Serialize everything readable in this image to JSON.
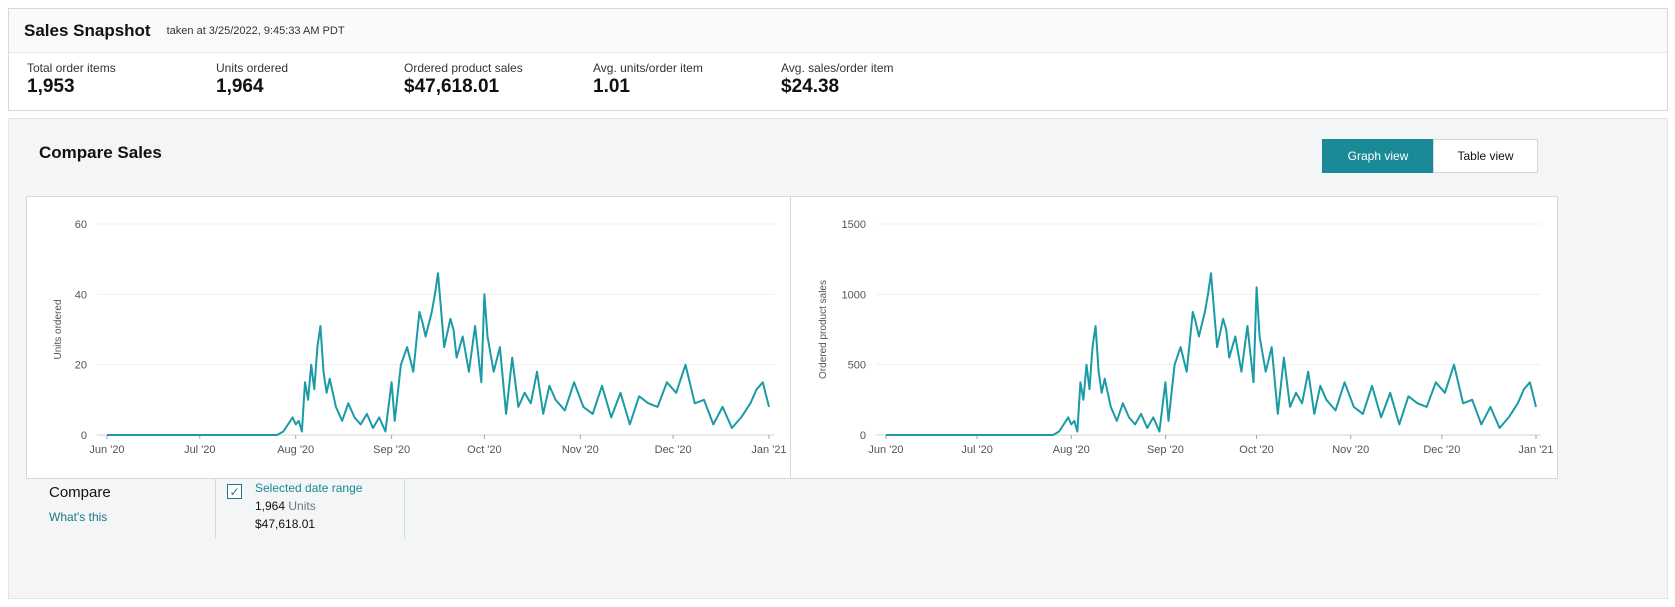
{
  "snapshot": {
    "title": "Sales Snapshot",
    "taken_at": "taken at 3/25/2022, 9:45:33 AM PDT",
    "metrics": [
      {
        "label": "Total order items",
        "value": "1,953"
      },
      {
        "label": "Units ordered",
        "value": "1,964"
      },
      {
        "label": "Ordered product sales",
        "value": "$47,618.01"
      },
      {
        "label": "Avg. units/order item",
        "value": "1.01"
      },
      {
        "label": "Avg. sales/order item",
        "value": "$24.38"
      }
    ]
  },
  "compare_sales": {
    "title": "Compare Sales",
    "view_toggle": {
      "graph": "Graph view",
      "table": "Table view",
      "selected": "Graph view"
    },
    "accent_color": "#1a8a96",
    "compare_label": "Compare",
    "whats_this": "What's this",
    "selected_range": {
      "label": "Selected date range",
      "checked": true,
      "units_value": "1,964",
      "units_suffix": "Units",
      "sales": "$47,618.01"
    }
  },
  "chart_data": [
    {
      "type": "line",
      "ylabel": "Units ordered",
      "ylim": [
        0,
        60
      ],
      "yticks": [
        "0",
        "20",
        "40",
        "60"
      ],
      "x_tick_labels": [
        "Jun '20",
        "Jul '20",
        "Aug '20",
        "Sep '20",
        "Oct '20",
        "Nov '20",
        "Dec '20",
        "Jan '21"
      ],
      "x_tick_dates": [
        "2020-06-01",
        "2020-07-01",
        "2020-08-01",
        "2020-09-01",
        "2020-10-01",
        "2020-11-01",
        "2020-12-01",
        "2021-01-01"
      ],
      "grid": true,
      "color": "#1a9ba6",
      "x": [
        "2020-06-01",
        "2020-07-01",
        "2020-07-26",
        "2020-07-28",
        "2020-07-31",
        "2020-08-01",
        "2020-08-02",
        "2020-08-03",
        "2020-08-04",
        "2020-08-05",
        "2020-08-06",
        "2020-08-07",
        "2020-08-08",
        "2020-08-09",
        "2020-08-10",
        "2020-08-11",
        "2020-08-12",
        "2020-08-14",
        "2020-08-16",
        "2020-08-18",
        "2020-08-20",
        "2020-08-22",
        "2020-08-24",
        "2020-08-26",
        "2020-08-28",
        "2020-08-30",
        "2020-09-01",
        "2020-09-02",
        "2020-09-04",
        "2020-09-06",
        "2020-09-08",
        "2020-09-10",
        "2020-09-11",
        "2020-09-12",
        "2020-09-14",
        "2020-09-15",
        "2020-09-16",
        "2020-09-18",
        "2020-09-20",
        "2020-09-21",
        "2020-09-22",
        "2020-09-24",
        "2020-09-26",
        "2020-09-28",
        "2020-09-30",
        "2020-10-01",
        "2020-10-02",
        "2020-10-04",
        "2020-10-06",
        "2020-10-08",
        "2020-10-10",
        "2020-10-12",
        "2020-10-14",
        "2020-10-16",
        "2020-10-18",
        "2020-10-20",
        "2020-10-22",
        "2020-10-24",
        "2020-10-27",
        "2020-10-30",
        "2020-11-02",
        "2020-11-05",
        "2020-11-08",
        "2020-11-11",
        "2020-11-14",
        "2020-11-17",
        "2020-11-20",
        "2020-11-23",
        "2020-11-26",
        "2020-11-29",
        "2020-12-02",
        "2020-12-05",
        "2020-12-08",
        "2020-12-11",
        "2020-12-14",
        "2020-12-17",
        "2020-12-20",
        "2020-12-23",
        "2020-12-26",
        "2020-12-28",
        "2020-12-30",
        "2021-01-01"
      ],
      "y": [
        0,
        0,
        0,
        1,
        5,
        3,
        4,
        1,
        15,
        10,
        20,
        13,
        25,
        31,
        18,
        12,
        16,
        8,
        4,
        9,
        5,
        3,
        6,
        2,
        5,
        1,
        15,
        4,
        20,
        25,
        18,
        35,
        32,
        28,
        35,
        40,
        46,
        25,
        33,
        30,
        22,
        28,
        18,
        31,
        15,
        40,
        28,
        18,
        25,
        6,
        22,
        8,
        12,
        9,
        18,
        6,
        14,
        10,
        7,
        15,
        8,
        6,
        14,
        5,
        12,
        3,
        11,
        9,
        8,
        15,
        12,
        20,
        9,
        10,
        3,
        8,
        2,
        5,
        9,
        13,
        15,
        8
      ]
    },
    {
      "type": "line",
      "ylabel": "Ordered product sales",
      "ylim": [
        0,
        1500
      ],
      "yticks": [
        "0",
        "500",
        "1000",
        "1500"
      ],
      "x_tick_labels": [
        "Jun '20",
        "Jul '20",
        "Aug '20",
        "Sep '20",
        "Oct '20",
        "Nov '20",
        "Dec '20",
        "Jan '21"
      ],
      "x_tick_dates": [
        "2020-06-01",
        "2020-07-01",
        "2020-08-01",
        "2020-09-01",
        "2020-10-01",
        "2020-11-01",
        "2020-12-01",
        "2021-01-01"
      ],
      "grid": true,
      "color": "#1a9ba6",
      "x": [
        "2020-06-01",
        "2020-07-01",
        "2020-07-26",
        "2020-07-28",
        "2020-07-31",
        "2020-08-01",
        "2020-08-02",
        "2020-08-03",
        "2020-08-04",
        "2020-08-05",
        "2020-08-06",
        "2020-08-07",
        "2020-08-08",
        "2020-08-09",
        "2020-08-10",
        "2020-08-11",
        "2020-08-12",
        "2020-08-14",
        "2020-08-16",
        "2020-08-18",
        "2020-08-20",
        "2020-08-22",
        "2020-08-24",
        "2020-08-26",
        "2020-08-28",
        "2020-08-30",
        "2020-09-01",
        "2020-09-02",
        "2020-09-04",
        "2020-09-06",
        "2020-09-08",
        "2020-09-10",
        "2020-09-11",
        "2020-09-12",
        "2020-09-14",
        "2020-09-15",
        "2020-09-16",
        "2020-09-18",
        "2020-09-20",
        "2020-09-21",
        "2020-09-22",
        "2020-09-24",
        "2020-09-26",
        "2020-09-28",
        "2020-09-30",
        "2020-10-01",
        "2020-10-02",
        "2020-10-04",
        "2020-10-06",
        "2020-10-08",
        "2020-10-10",
        "2020-10-12",
        "2020-10-14",
        "2020-10-16",
        "2020-10-18",
        "2020-10-20",
        "2020-10-22",
        "2020-10-24",
        "2020-10-27",
        "2020-10-30",
        "2020-11-02",
        "2020-11-05",
        "2020-11-08",
        "2020-11-11",
        "2020-11-14",
        "2020-11-17",
        "2020-11-20",
        "2020-11-23",
        "2020-11-26",
        "2020-11-29",
        "2020-12-02",
        "2020-12-05",
        "2020-12-08",
        "2020-12-11",
        "2020-12-14",
        "2020-12-17",
        "2020-12-20",
        "2020-12-23",
        "2020-12-26",
        "2020-12-28",
        "2020-12-30",
        "2021-01-01"
      ],
      "y": [
        0,
        0,
        0,
        25,
        125,
        75,
        100,
        25,
        375,
        250,
        500,
        325,
        625,
        775,
        450,
        300,
        400,
        200,
        100,
        225,
        125,
        75,
        150,
        50,
        125,
        25,
        375,
        100,
        500,
        625,
        450,
        875,
        800,
        700,
        875,
        1000,
        1150,
        625,
        825,
        750,
        550,
        700,
        450,
        775,
        375,
        1050,
        700,
        450,
        625,
        150,
        550,
        200,
        300,
        225,
        450,
        150,
        350,
        250,
        175,
        375,
        200,
        150,
        350,
        125,
        300,
        75,
        275,
        225,
        200,
        375,
        300,
        500,
        225,
        250,
        75,
        200,
        50,
        125,
        225,
        325,
        375,
        200
      ]
    }
  ]
}
